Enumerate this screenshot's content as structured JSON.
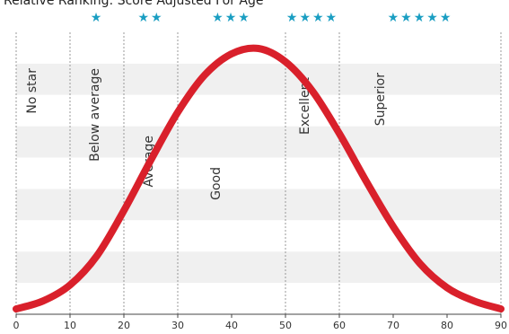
{
  "chart_data": {
    "type": "line",
    "title": "Relative Ranking: Score Adjusted For Age",
    "xlim": [
      0,
      90
    ],
    "ylim": [
      0,
      1
    ],
    "x_ticks": [
      "0",
      "10",
      "20",
      "30",
      "40",
      "50",
      "60",
      "70",
      "80",
      "90"
    ],
    "grid": "horizontal bands",
    "series": [
      {
        "x": [
          0,
          5,
          10,
          15,
          20,
          25,
          30,
          35,
          40,
          45,
          50,
          55,
          60,
          65,
          70,
          75,
          80,
          85,
          90
        ],
        "y": [
          0.02,
          0.05,
          0.11,
          0.22,
          0.39,
          0.58,
          0.76,
          0.9,
          0.98,
          1.0,
          0.95,
          0.84,
          0.68,
          0.5,
          0.33,
          0.19,
          0.1,
          0.05,
          0.02
        ]
      }
    ],
    "bands": [
      {
        "label": "No star",
        "stars": "",
        "from": 0,
        "to": 10
      },
      {
        "label": "Below average",
        "stars": "★",
        "from": 10,
        "to": 20
      },
      {
        "label": "Average",
        "stars": "★★",
        "from": 20,
        "to": 30
      },
      {
        "label": "Good",
        "stars": "★★★",
        "from": 30,
        "to": 50
      },
      {
        "label": "Excellent",
        "stars": "★★★★",
        "from": 50,
        "to": 60
      },
      {
        "label": "Superior",
        "stars": "★★★★★",
        "from": 60,
        "to": 90
      }
    ],
    "colors": {
      "curve": "#d9202b",
      "stars": "#1a9ec2",
      "band_light": "#ffffff",
      "band_dark": "#f0f0f0",
      "divider": "#999999",
      "axis": "#444444"
    }
  }
}
